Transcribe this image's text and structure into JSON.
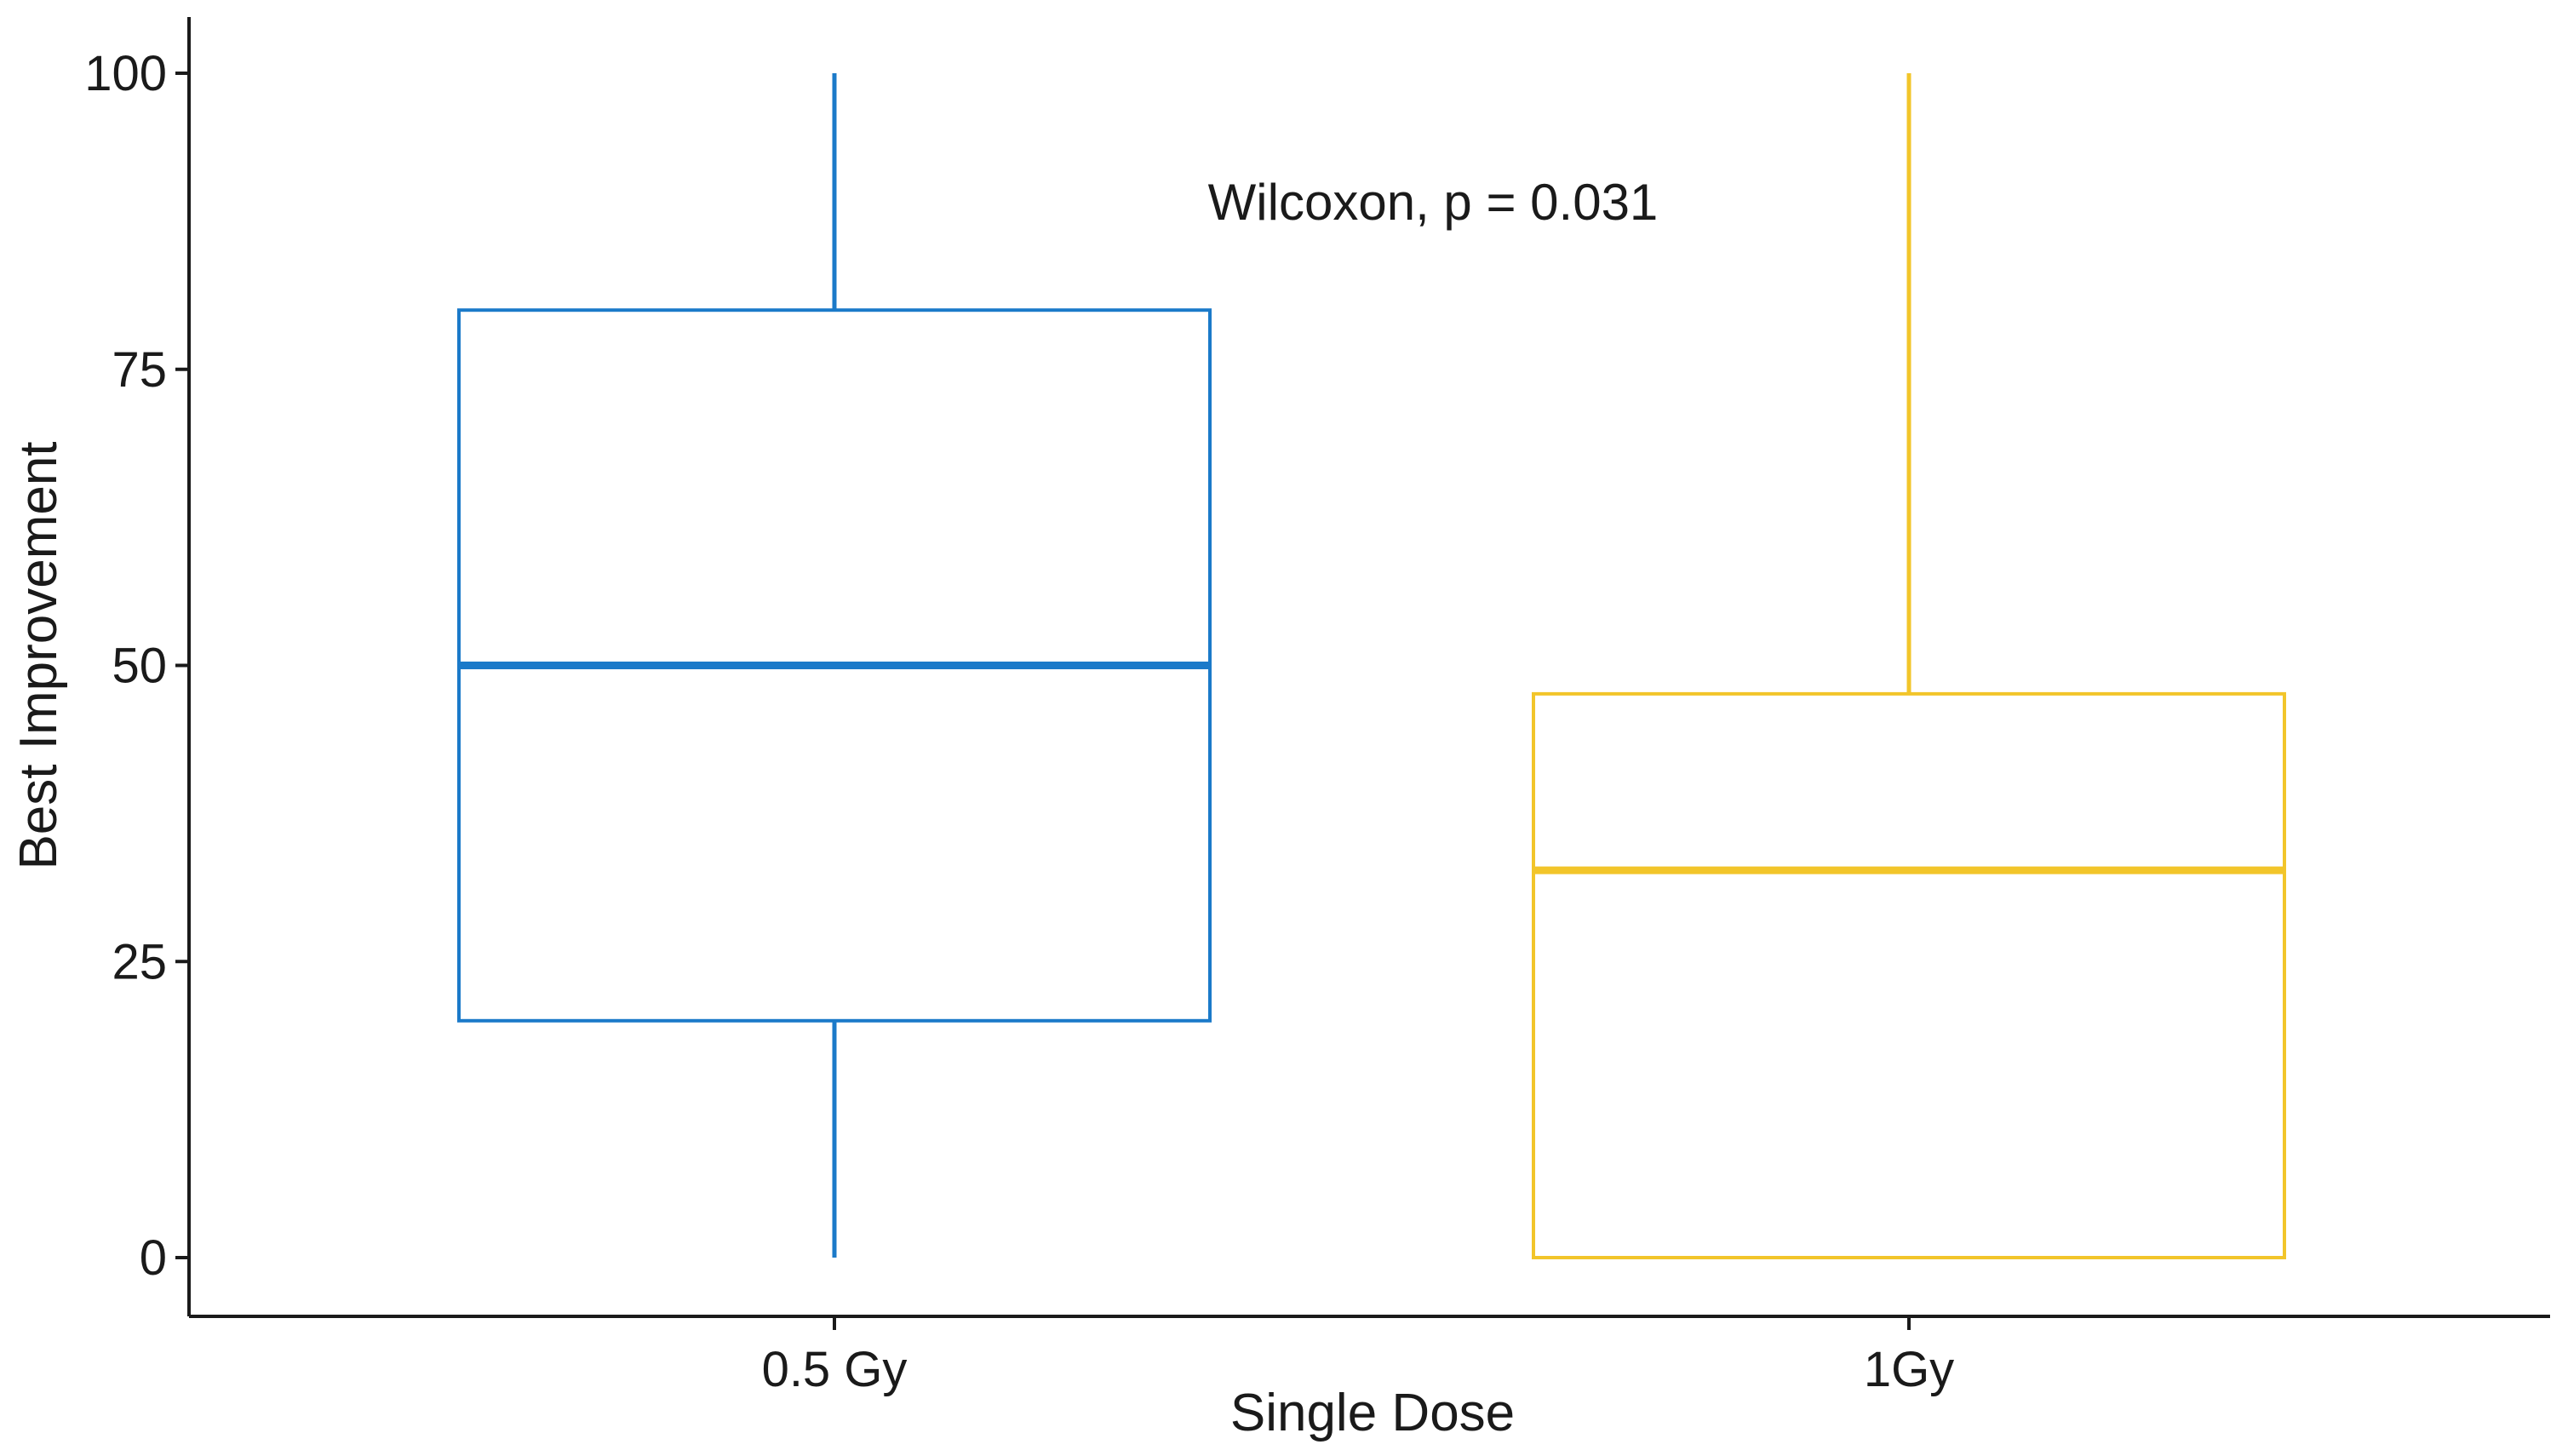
{
  "chart_data": {
    "type": "boxplot",
    "title": "",
    "xlabel": "Single Dose",
    "ylabel": "Best Improvement",
    "ylim": [
      0,
      100
    ],
    "yticks": [
      0,
      25,
      50,
      75,
      100
    ],
    "ytick_labels": [
      "0",
      "25",
      "50",
      "75",
      "100"
    ],
    "grid": false,
    "legend": "none",
    "annotation": "Wilcoxon, p = 0.031",
    "groups": [
      {
        "name": "0.5 Gy",
        "color": "#1b7ac9",
        "min": 0,
        "q1": 20,
        "median": 50,
        "q3": 80,
        "max": 100
      },
      {
        "name": "1Gy",
        "color": "#f2c52a",
        "min": 0,
        "q1": 0,
        "median": 32.7,
        "q3": 47.6,
        "max": 100
      }
    ]
  }
}
